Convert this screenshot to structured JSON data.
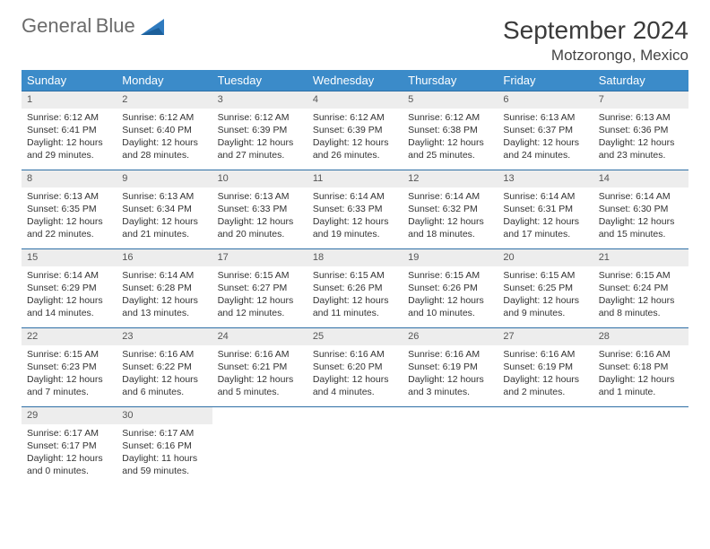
{
  "brand": {
    "word1": "General",
    "word2": "Blue"
  },
  "title": "September 2024",
  "location": "Motzorongo, Mexico",
  "colors": {
    "header_bg": "#3b8bc9",
    "row_border": "#2e6fa5",
    "daynum_bg": "#ededed",
    "text": "#333333",
    "brand_gray": "#6b6b6b",
    "brand_blue": "#2f7bbf"
  },
  "weekdays": [
    "Sunday",
    "Monday",
    "Tuesday",
    "Wednesday",
    "Thursday",
    "Friday",
    "Saturday"
  ],
  "days": [
    {
      "n": 1,
      "sr": "6:12 AM",
      "ss": "6:41 PM",
      "dl": "12 hours and 29 minutes."
    },
    {
      "n": 2,
      "sr": "6:12 AM",
      "ss": "6:40 PM",
      "dl": "12 hours and 28 minutes."
    },
    {
      "n": 3,
      "sr": "6:12 AM",
      "ss": "6:39 PM",
      "dl": "12 hours and 27 minutes."
    },
    {
      "n": 4,
      "sr": "6:12 AM",
      "ss": "6:39 PM",
      "dl": "12 hours and 26 minutes."
    },
    {
      "n": 5,
      "sr": "6:12 AM",
      "ss": "6:38 PM",
      "dl": "12 hours and 25 minutes."
    },
    {
      "n": 6,
      "sr": "6:13 AM",
      "ss": "6:37 PM",
      "dl": "12 hours and 24 minutes."
    },
    {
      "n": 7,
      "sr": "6:13 AM",
      "ss": "6:36 PM",
      "dl": "12 hours and 23 minutes."
    },
    {
      "n": 8,
      "sr": "6:13 AM",
      "ss": "6:35 PM",
      "dl": "12 hours and 22 minutes."
    },
    {
      "n": 9,
      "sr": "6:13 AM",
      "ss": "6:34 PM",
      "dl": "12 hours and 21 minutes."
    },
    {
      "n": 10,
      "sr": "6:13 AM",
      "ss": "6:33 PM",
      "dl": "12 hours and 20 minutes."
    },
    {
      "n": 11,
      "sr": "6:14 AM",
      "ss": "6:33 PM",
      "dl": "12 hours and 19 minutes."
    },
    {
      "n": 12,
      "sr": "6:14 AM",
      "ss": "6:32 PM",
      "dl": "12 hours and 18 minutes."
    },
    {
      "n": 13,
      "sr": "6:14 AM",
      "ss": "6:31 PM",
      "dl": "12 hours and 17 minutes."
    },
    {
      "n": 14,
      "sr": "6:14 AM",
      "ss": "6:30 PM",
      "dl": "12 hours and 15 minutes."
    },
    {
      "n": 15,
      "sr": "6:14 AM",
      "ss": "6:29 PM",
      "dl": "12 hours and 14 minutes."
    },
    {
      "n": 16,
      "sr": "6:14 AM",
      "ss": "6:28 PM",
      "dl": "12 hours and 13 minutes."
    },
    {
      "n": 17,
      "sr": "6:15 AM",
      "ss": "6:27 PM",
      "dl": "12 hours and 12 minutes."
    },
    {
      "n": 18,
      "sr": "6:15 AM",
      "ss": "6:26 PM",
      "dl": "12 hours and 11 minutes."
    },
    {
      "n": 19,
      "sr": "6:15 AM",
      "ss": "6:26 PM",
      "dl": "12 hours and 10 minutes."
    },
    {
      "n": 20,
      "sr": "6:15 AM",
      "ss": "6:25 PM",
      "dl": "12 hours and 9 minutes."
    },
    {
      "n": 21,
      "sr": "6:15 AM",
      "ss": "6:24 PM",
      "dl": "12 hours and 8 minutes."
    },
    {
      "n": 22,
      "sr": "6:15 AM",
      "ss": "6:23 PM",
      "dl": "12 hours and 7 minutes."
    },
    {
      "n": 23,
      "sr": "6:16 AM",
      "ss": "6:22 PM",
      "dl": "12 hours and 6 minutes."
    },
    {
      "n": 24,
      "sr": "6:16 AM",
      "ss": "6:21 PM",
      "dl": "12 hours and 5 minutes."
    },
    {
      "n": 25,
      "sr": "6:16 AM",
      "ss": "6:20 PM",
      "dl": "12 hours and 4 minutes."
    },
    {
      "n": 26,
      "sr": "6:16 AM",
      "ss": "6:19 PM",
      "dl": "12 hours and 3 minutes."
    },
    {
      "n": 27,
      "sr": "6:16 AM",
      "ss": "6:19 PM",
      "dl": "12 hours and 2 minutes."
    },
    {
      "n": 28,
      "sr": "6:16 AM",
      "ss": "6:18 PM",
      "dl": "12 hours and 1 minute."
    },
    {
      "n": 29,
      "sr": "6:17 AM",
      "ss": "6:17 PM",
      "dl": "12 hours and 0 minutes."
    },
    {
      "n": 30,
      "sr": "6:17 AM",
      "ss": "6:16 PM",
      "dl": "11 hours and 59 minutes."
    }
  ],
  "labels": {
    "sunrise": "Sunrise:",
    "sunset": "Sunset:",
    "daylight": "Daylight:"
  },
  "layout": {
    "first_weekday_index": 0,
    "rows": 5,
    "cols": 7
  }
}
